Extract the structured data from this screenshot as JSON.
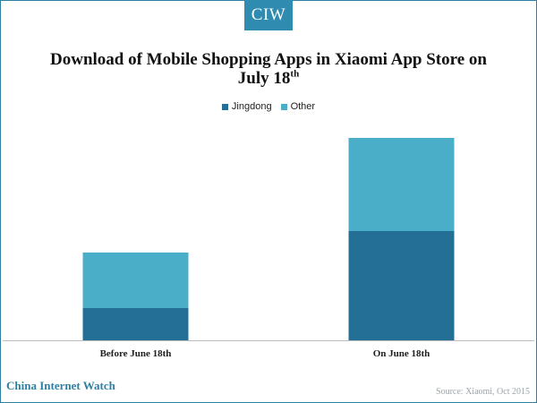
{
  "brand": {
    "logo_text": "CIW",
    "accent_color": "#2f8bb0"
  },
  "title": {
    "main": "Download of Mobile Shopping Apps in Xiaomi App Store on July 18",
    "superscript": "th"
  },
  "footer": {
    "left": "China Internet Watch",
    "right": "Source: Xiaomi, Oct 2015"
  },
  "chart_data": {
    "type": "bar",
    "stacked": true,
    "categories": [
      "Before June 18th",
      "On June 18th"
    ],
    "series": [
      {
        "name": "Jingdong",
        "color": "#236f96",
        "values": [
          36,
          122
        ]
      },
      {
        "name": "Other",
        "color": "#4aaec8",
        "values": [
          62,
          104
        ]
      }
    ],
    "ylim": [
      0,
      240
    ],
    "grid": false,
    "legend": "top-center",
    "xlabel": "",
    "ylabel": ""
  }
}
